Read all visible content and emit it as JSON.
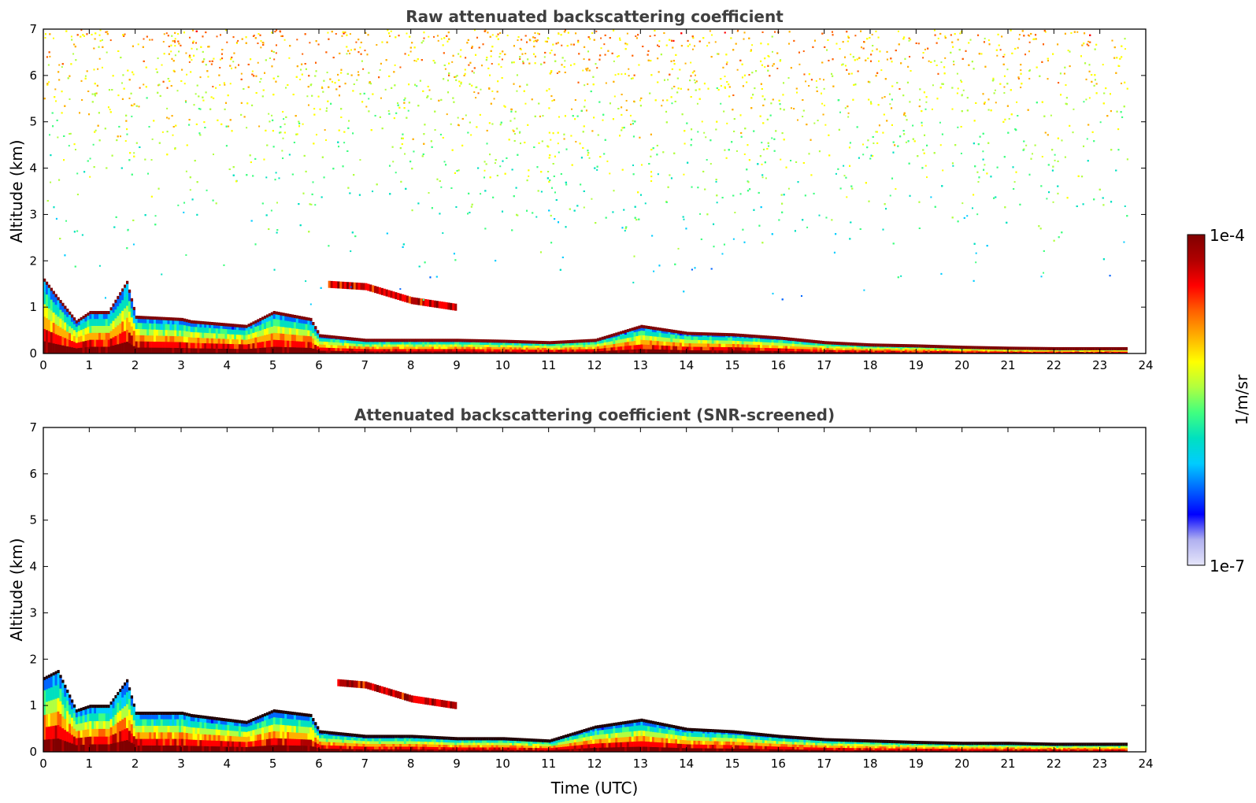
{
  "chart_data": [
    {
      "type": "heatmap",
      "title": "Raw attenuated backscattering coefficient",
      "xlabel": "",
      "ylabel": "Altitude (km)",
      "xlim": [
        0,
        24
      ],
      "ylim": [
        0,
        7
      ],
      "x_ticks": [
        "0",
        "1",
        "2",
        "3",
        "4",
        "5",
        "6",
        "7",
        "8",
        "9",
        "10",
        "11",
        "12",
        "13",
        "14",
        "15",
        "16",
        "17",
        "18",
        "19",
        "20",
        "21",
        "22",
        "23",
        "24"
      ],
      "y_ticks": [
        "0",
        "1",
        "2",
        "3",
        "4",
        "5",
        "6",
        "7"
      ],
      "grid": false,
      "colorscale": "jet",
      "data_end_time": 23.6,
      "features": {
        "boundary_layer_top_km": [
          [
            0.0,
            1.6
          ],
          [
            0.3,
            1.2
          ],
          [
            0.7,
            0.7
          ],
          [
            1.0,
            0.9
          ],
          [
            1.4,
            0.9
          ],
          [
            1.8,
            1.55
          ],
          [
            2.0,
            0.8
          ],
          [
            3.0,
            0.75
          ],
          [
            3.2,
            0.7
          ],
          [
            4.4,
            0.6
          ],
          [
            5.0,
            0.9
          ],
          [
            5.8,
            0.75
          ],
          [
            6.0,
            0.4
          ],
          [
            7.0,
            0.3
          ],
          [
            8.0,
            0.3
          ],
          [
            9.0,
            0.3
          ],
          [
            10.0,
            0.28
          ],
          [
            11.0,
            0.25
          ],
          [
            12.0,
            0.3
          ],
          [
            13.0,
            0.6
          ],
          [
            14.0,
            0.45
          ],
          [
            15.0,
            0.42
          ],
          [
            16.0,
            0.35
          ],
          [
            17.0,
            0.25
          ],
          [
            18.0,
            0.2
          ],
          [
            19.0,
            0.18
          ],
          [
            20.0,
            0.15
          ],
          [
            21.0,
            0.13
          ],
          [
            22.0,
            0.12
          ],
          [
            23.0,
            0.12
          ],
          [
            23.6,
            0.12
          ]
        ],
        "elevated_aerosol_layer_km": [
          [
            6.2,
            1.5
          ],
          [
            7.0,
            1.45
          ],
          [
            8.0,
            1.15
          ],
          [
            9.0,
            1.0
          ]
        ],
        "noise_increases_with_altitude": true,
        "strongest_noise_hours": [
          9,
          12
        ]
      }
    },
    {
      "type": "heatmap",
      "title": "Attenuated backscattering coefficient (SNR-screened)",
      "xlabel": "Time (UTC)",
      "ylabel": "Altitude (km)",
      "xlim": [
        0,
        24
      ],
      "ylim": [
        0,
        7
      ],
      "x_ticks": [
        "0",
        "1",
        "2",
        "3",
        "4",
        "5",
        "6",
        "7",
        "8",
        "9",
        "10",
        "11",
        "12",
        "13",
        "14",
        "15",
        "16",
        "17",
        "18",
        "19",
        "20",
        "21",
        "22",
        "23",
        "24"
      ],
      "y_ticks": [
        "0",
        "1",
        "2",
        "3",
        "4",
        "5",
        "6",
        "7"
      ],
      "grid": false,
      "colorscale": "jet",
      "data_end_time": 23.6,
      "features": {
        "boundary_layer_top_km": [
          [
            0.0,
            1.6
          ],
          [
            0.3,
            1.75
          ],
          [
            0.7,
            0.9
          ],
          [
            1.0,
            1.0
          ],
          [
            1.4,
            1.0
          ],
          [
            1.8,
            1.55
          ],
          [
            2.0,
            0.85
          ],
          [
            3.0,
            0.85
          ],
          [
            3.2,
            0.8
          ],
          [
            4.4,
            0.65
          ],
          [
            5.0,
            0.9
          ],
          [
            5.8,
            0.8
          ],
          [
            6.0,
            0.45
          ],
          [
            7.0,
            0.35
          ],
          [
            8.0,
            0.35
          ],
          [
            9.0,
            0.3
          ],
          [
            10.0,
            0.3
          ],
          [
            11.0,
            0.25
          ],
          [
            12.0,
            0.55
          ],
          [
            13.0,
            0.7
          ],
          [
            14.0,
            0.5
          ],
          [
            15.0,
            0.45
          ],
          [
            16.0,
            0.35
          ],
          [
            17.0,
            0.28
          ],
          [
            18.0,
            0.25
          ],
          [
            19.0,
            0.22
          ],
          [
            20.0,
            0.2
          ],
          [
            21.0,
            0.2
          ],
          [
            22.0,
            0.18
          ],
          [
            23.0,
            0.18
          ],
          [
            23.6,
            0.18
          ]
        ],
        "elevated_aerosol_layer_km": [
          [
            6.4,
            1.5
          ],
          [
            7.0,
            1.45
          ],
          [
            8.0,
            1.15
          ],
          [
            9.0,
            1.0
          ]
        ],
        "noise_increases_with_altitude": false
      }
    }
  ],
  "colorbar": {
    "label": "1/m/sr",
    "max_label": "1e-4",
    "min_label": "1e-7",
    "colors": [
      "#e6e6fa",
      "#b0b0f0",
      "#0000ff",
      "#0066ff",
      "#00ccff",
      "#00e0c0",
      "#40ff80",
      "#b0ff40",
      "#ffff00",
      "#ffb000",
      "#ff6000",
      "#ff0000",
      "#b00000",
      "#800000"
    ]
  }
}
